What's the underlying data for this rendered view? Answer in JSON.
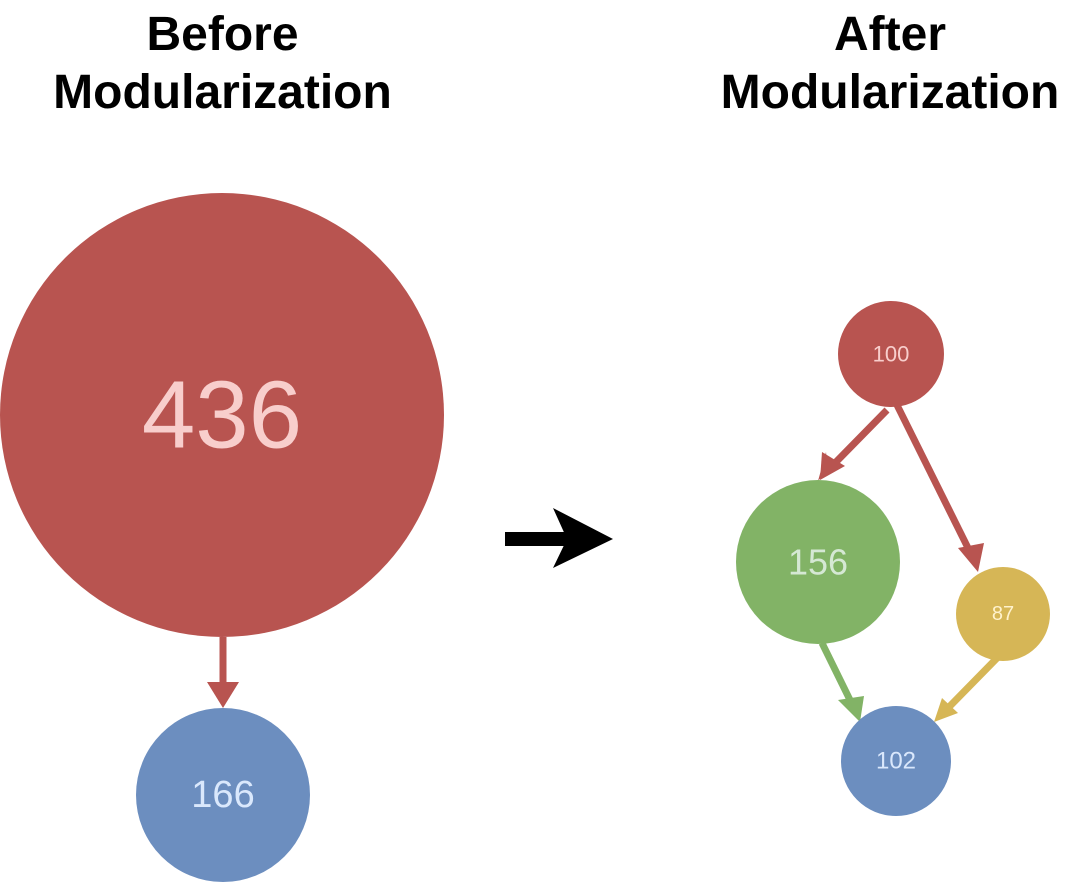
{
  "before": {
    "title_line1": "Before",
    "title_line2": "Modularization",
    "nodes": [
      {
        "id": "b1",
        "label": "436",
        "color": "#b85450"
      },
      {
        "id": "b2",
        "label": "166",
        "color": "#6c8ebf"
      }
    ]
  },
  "after": {
    "title_line1": "After",
    "title_line2": "Modularization",
    "nodes": [
      {
        "id": "a1",
        "label": "100",
        "color": "#b85450"
      },
      {
        "id": "a2",
        "label": "156",
        "color": "#82b366"
      },
      {
        "id": "a3",
        "label": "87",
        "color": "#d6b656"
      },
      {
        "id": "a4",
        "label": "102",
        "color": "#6c8ebf"
      }
    ]
  },
  "colors": {
    "label_light": "#f8cecc",
    "label_light_green": "#d5e8d4",
    "label_light_yellow": "#fff2cc",
    "label_light_blue": "#dae8fc",
    "transition_arrow": "#000000"
  }
}
